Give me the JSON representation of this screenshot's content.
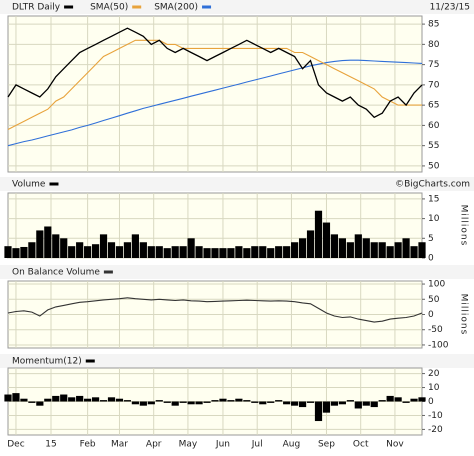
{
  "chart_data": [
    {
      "type": "line",
      "title": "DLTR Daily",
      "date_label": "11/23/15",
      "x": [
        0,
        1,
        2,
        3,
        4,
        5,
        6,
        7,
        8,
        9,
        10,
        11,
        12,
        13,
        14,
        15,
        16,
        17,
        18,
        19,
        20,
        21,
        22,
        23,
        24,
        25,
        26,
        27,
        28,
        29,
        30,
        31,
        32,
        33,
        34,
        35,
        36,
        37,
        38,
        39,
        40,
        41,
        42,
        43,
        44,
        45,
        46,
        47,
        48,
        49,
        50,
        51,
        52
      ],
      "xlim": [
        0,
        52
      ],
      "series": [
        {
          "name": "DLTR Daily",
          "color": "#000000",
          "values": [
            67,
            70,
            69,
            68,
            67,
            69,
            72,
            74,
            76,
            78,
            79,
            80,
            81,
            82,
            83,
            84,
            83,
            82,
            80,
            81,
            79,
            78,
            79,
            78,
            77,
            76,
            77,
            78,
            79,
            80,
            81,
            80,
            79,
            78,
            79,
            78,
            77,
            74,
            76,
            70,
            68,
            67,
            66,
            67,
            65,
            64,
            62,
            63,
            66,
            67,
            65,
            68,
            70
          ]
        },
        {
          "name": "SMA(50)",
          "color": "#e8a33c",
          "values": [
            59,
            60,
            61,
            62,
            63,
            64,
            66,
            67,
            69,
            71,
            73,
            75,
            77,
            78,
            79,
            80,
            81,
            81,
            81,
            81,
            80,
            80,
            79,
            79,
            79,
            79,
            79,
            79,
            79,
            79,
            79,
            79,
            79,
            79,
            79,
            79,
            78,
            78,
            77,
            76,
            75,
            74,
            73,
            72,
            71,
            70,
            69,
            67,
            66,
            65,
            65,
            65,
            65
          ]
        },
        {
          "name": "SMA(200)",
          "color": "#2f6fd8",
          "values": [
            55,
            55.5,
            56,
            56.4,
            56.9,
            57.4,
            57.9,
            58.4,
            58.9,
            59.5,
            60,
            60.6,
            61.2,
            61.8,
            62.4,
            63,
            63.6,
            64.2,
            64.7,
            65.2,
            65.7,
            66.2,
            66.7,
            67.2,
            67.7,
            68.2,
            68.7,
            69.2,
            69.7,
            70.2,
            70.7,
            71.2,
            71.7,
            72.2,
            72.7,
            73.2,
            73.7,
            74.2,
            74.7,
            75.1,
            75.5,
            75.8,
            76,
            76.1,
            76.1,
            76,
            75.9,
            75.8,
            75.7,
            75.6,
            75.5,
            75.4,
            75.3
          ]
        }
      ],
      "ylim": [
        48.5,
        87
      ],
      "yticks": [
        50,
        55,
        60,
        65,
        70,
        75,
        80,
        85
      ],
      "grid": true
    },
    {
      "type": "bar",
      "title": "Volume",
      "credit": "©BigCharts.com",
      "ylabel": "Millions",
      "series": [
        {
          "name": "Volume",
          "color": "#000000",
          "values": [
            3,
            2.5,
            2.8,
            4,
            7,
            8,
            6,
            5,
            3,
            4,
            3,
            3.5,
            6,
            4,
            3,
            4,
            6,
            4,
            3,
            3,
            2.5,
            3,
            3,
            5,
            3,
            2.5,
            2.5,
            2.5,
            2.5,
            3,
            2.5,
            3,
            3,
            2.5,
            3,
            3,
            4,
            5,
            7,
            12,
            9,
            6,
            5,
            4,
            6,
            5,
            4,
            4,
            3,
            4,
            5,
            3,
            4
          ]
        }
      ],
      "ylim": [
        0,
        16.5
      ],
      "yticks": [
        0,
        5,
        10,
        15
      ],
      "grid": true
    },
    {
      "type": "line",
      "title": "On Balance Volume",
      "ylabel": "Millions",
      "series": [
        {
          "name": "On Balance Volume",
          "color": "#333333",
          "values": [
            5,
            10,
            12,
            8,
            -5,
            15,
            25,
            30,
            35,
            40,
            42,
            45,
            48,
            50,
            52,
            55,
            52,
            50,
            48,
            50,
            48,
            46,
            48,
            45,
            44,
            42,
            43,
            44,
            45,
            46,
            47,
            46,
            45,
            44,
            45,
            44,
            42,
            38,
            35,
            20,
            5,
            -5,
            -10,
            -8,
            -15,
            -20,
            -25,
            -22,
            -15,
            -12,
            -10,
            -5,
            5
          ]
        }
      ],
      "ylim": [
        -110,
        110
      ],
      "yticks": [
        -100,
        -50,
        0,
        50,
        100
      ],
      "grid": true
    },
    {
      "type": "bar",
      "title": "Momentum(12)",
      "series": [
        {
          "name": "Momentum(12)",
          "color": "#000000",
          "values": [
            5,
            6,
            2,
            -1,
            -3,
            2,
            4,
            5,
            3,
            4,
            2,
            3,
            1,
            3,
            2,
            1,
            -2,
            -3,
            -2,
            1,
            -1,
            -3,
            -1,
            -2,
            -2,
            -1,
            1,
            2,
            1,
            2,
            1,
            -1,
            -2,
            -1,
            1,
            -2,
            -3,
            -4,
            -1,
            -14,
            -8,
            -3,
            -2,
            1,
            -5,
            -3,
            -4,
            1,
            4,
            3,
            -1,
            2,
            3
          ]
        }
      ],
      "ylim": [
        -24,
        24
      ],
      "yticks": [
        -20,
        -10,
        0,
        10,
        20
      ],
      "grid": true,
      "xticks": [
        {
          "value": 1,
          "label": "Dec"
        },
        {
          "value": 5.4,
          "label": "15"
        },
        {
          "value": 10,
          "label": "Feb"
        },
        {
          "value": 14,
          "label": "Mar"
        },
        {
          "value": 18.3,
          "label": "Apr"
        },
        {
          "value": 22.6,
          "label": "May"
        },
        {
          "value": 27,
          "label": "Jun"
        },
        {
          "value": 31.3,
          "label": "Jul"
        },
        {
          "value": 35.6,
          "label": "Aug"
        },
        {
          "value": 40,
          "label": "Sep"
        },
        {
          "value": 44.3,
          "label": "Oct"
        },
        {
          "value": 48.6,
          "label": "Nov"
        }
      ]
    }
  ]
}
